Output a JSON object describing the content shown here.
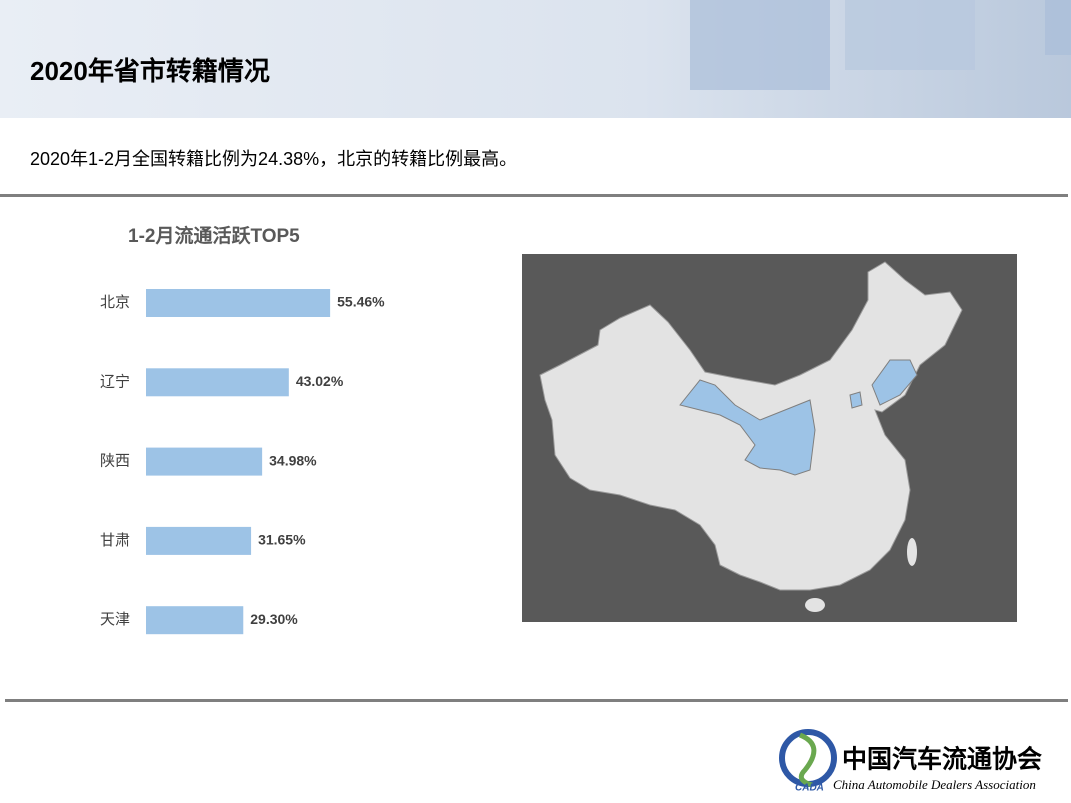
{
  "header": {
    "title": "2020年省市转籍情况"
  },
  "summary": "2020年1-2月全国转籍比例为24.38%，北京的转籍比例最高。",
  "chart_data": {
    "type": "bar",
    "orientation": "horizontal",
    "title": "1-2月流通活跃TOP5",
    "categories": [
      "北京",
      "辽宁",
      "陕西",
      "甘肃",
      "天津"
    ],
    "values": [
      55.46,
      43.02,
      34.98,
      31.65,
      29.3
    ],
    "value_labels": [
      "55.46%",
      "43.02%",
      "34.98%",
      "31.65%",
      "29.30%"
    ],
    "color": "#9dc3e6"
  },
  "footer": {
    "logo_mark": "CADA",
    "org_cn": "中国汽车流通协会",
    "org_en": "China Automobile Dealers Association"
  }
}
